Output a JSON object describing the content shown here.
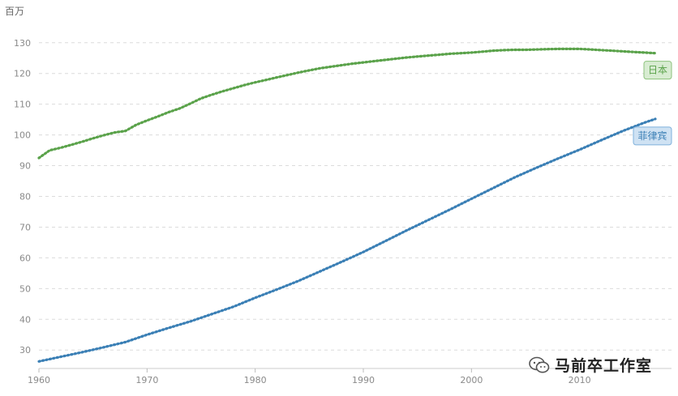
{
  "chart_data": {
    "type": "line",
    "ylabel": "百万",
    "ylim": [
      24,
      136
    ],
    "xlim": [
      1960,
      2018.5
    ],
    "yticks": [
      30,
      40,
      50,
      60,
      70,
      80,
      90,
      100,
      110,
      120,
      130
    ],
    "xticks": [
      1960,
      1970,
      1980,
      1990,
      2000,
      2010
    ],
    "grid": true,
    "series": [
      {
        "name": "日本",
        "color": "#5aa24a",
        "label_bg": "#d8ecd2",
        "label_border": "#8cc27c",
        "points": [
          [
            1960,
            92.5
          ],
          [
            1961,
            95.0
          ],
          [
            1962,
            95.8
          ],
          [
            1963,
            96.8
          ],
          [
            1964,
            97.8
          ],
          [
            1965,
            98.9
          ],
          [
            1966,
            99.9
          ],
          [
            1967,
            100.8
          ],
          [
            1968,
            101.3
          ],
          [
            1969,
            103.3
          ],
          [
            1970,
            104.7
          ],
          [
            1971,
            106.0
          ],
          [
            1972,
            107.4
          ],
          [
            1973,
            108.6
          ],
          [
            1974,
            110.2
          ],
          [
            1975,
            111.9
          ],
          [
            1976,
            113.1
          ],
          [
            1977,
            114.2
          ],
          [
            1978,
            115.2
          ],
          [
            1979,
            116.2
          ],
          [
            1980,
            117.1
          ],
          [
            1981,
            117.9
          ],
          [
            1982,
            118.7
          ],
          [
            1983,
            119.5
          ],
          [
            1984,
            120.3
          ],
          [
            1985,
            121.0
          ],
          [
            1986,
            121.7
          ],
          [
            1987,
            122.2
          ],
          [
            1988,
            122.7
          ],
          [
            1989,
            123.2
          ],
          [
            1990,
            123.6
          ],
          [
            1991,
            124.0
          ],
          [
            1992,
            124.4
          ],
          [
            1993,
            124.8
          ],
          [
            1994,
            125.2
          ],
          [
            1995,
            125.5
          ],
          [
            1996,
            125.8
          ],
          [
            1997,
            126.1
          ],
          [
            1998,
            126.4
          ],
          [
            1999,
            126.6
          ],
          [
            2000,
            126.8
          ],
          [
            2001,
            127.1
          ],
          [
            2002,
            127.4
          ],
          [
            2003,
            127.6
          ],
          [
            2004,
            127.7
          ],
          [
            2005,
            127.7
          ],
          [
            2006,
            127.8
          ],
          [
            2007,
            127.9
          ],
          [
            2008,
            128.0
          ],
          [
            2009,
            128.0
          ],
          [
            2010,
            128.0
          ],
          [
            2011,
            127.8
          ],
          [
            2012,
            127.6
          ],
          [
            2013,
            127.4
          ],
          [
            2014,
            127.2
          ],
          [
            2015,
            127.0
          ],
          [
            2016,
            126.8
          ],
          [
            2017,
            126.6
          ]
        ]
      },
      {
        "name": "菲律宾",
        "color": "#3a7fb5",
        "label_bg": "#cfe2f3",
        "label_border": "#7fb1dc",
        "points": [
          [
            1960,
            26.3
          ],
          [
            1962,
            27.8
          ],
          [
            1964,
            29.3
          ],
          [
            1966,
            30.9
          ],
          [
            1968,
            32.6
          ],
          [
            1970,
            35.0
          ],
          [
            1972,
            37.2
          ],
          [
            1974,
            39.3
          ],
          [
            1976,
            41.7
          ],
          [
            1978,
            44.1
          ],
          [
            1980,
            47.0
          ],
          [
            1982,
            49.7
          ],
          [
            1984,
            52.5
          ],
          [
            1986,
            55.6
          ],
          [
            1988,
            58.7
          ],
          [
            1990,
            61.9
          ],
          [
            1992,
            65.4
          ],
          [
            1994,
            68.9
          ],
          [
            1996,
            72.3
          ],
          [
            1998,
            75.7
          ],
          [
            2000,
            79.2
          ],
          [
            2002,
            82.7
          ],
          [
            2004,
            86.2
          ],
          [
            2006,
            89.3
          ],
          [
            2008,
            92.3
          ],
          [
            2010,
            95.2
          ],
          [
            2012,
            98.3
          ],
          [
            2014,
            101.3
          ],
          [
            2016,
            104.0
          ],
          [
            2017,
            105.2
          ]
        ]
      }
    ]
  },
  "watermark": {
    "text": "马前卒工作室",
    "icon": "wechat-icon"
  }
}
